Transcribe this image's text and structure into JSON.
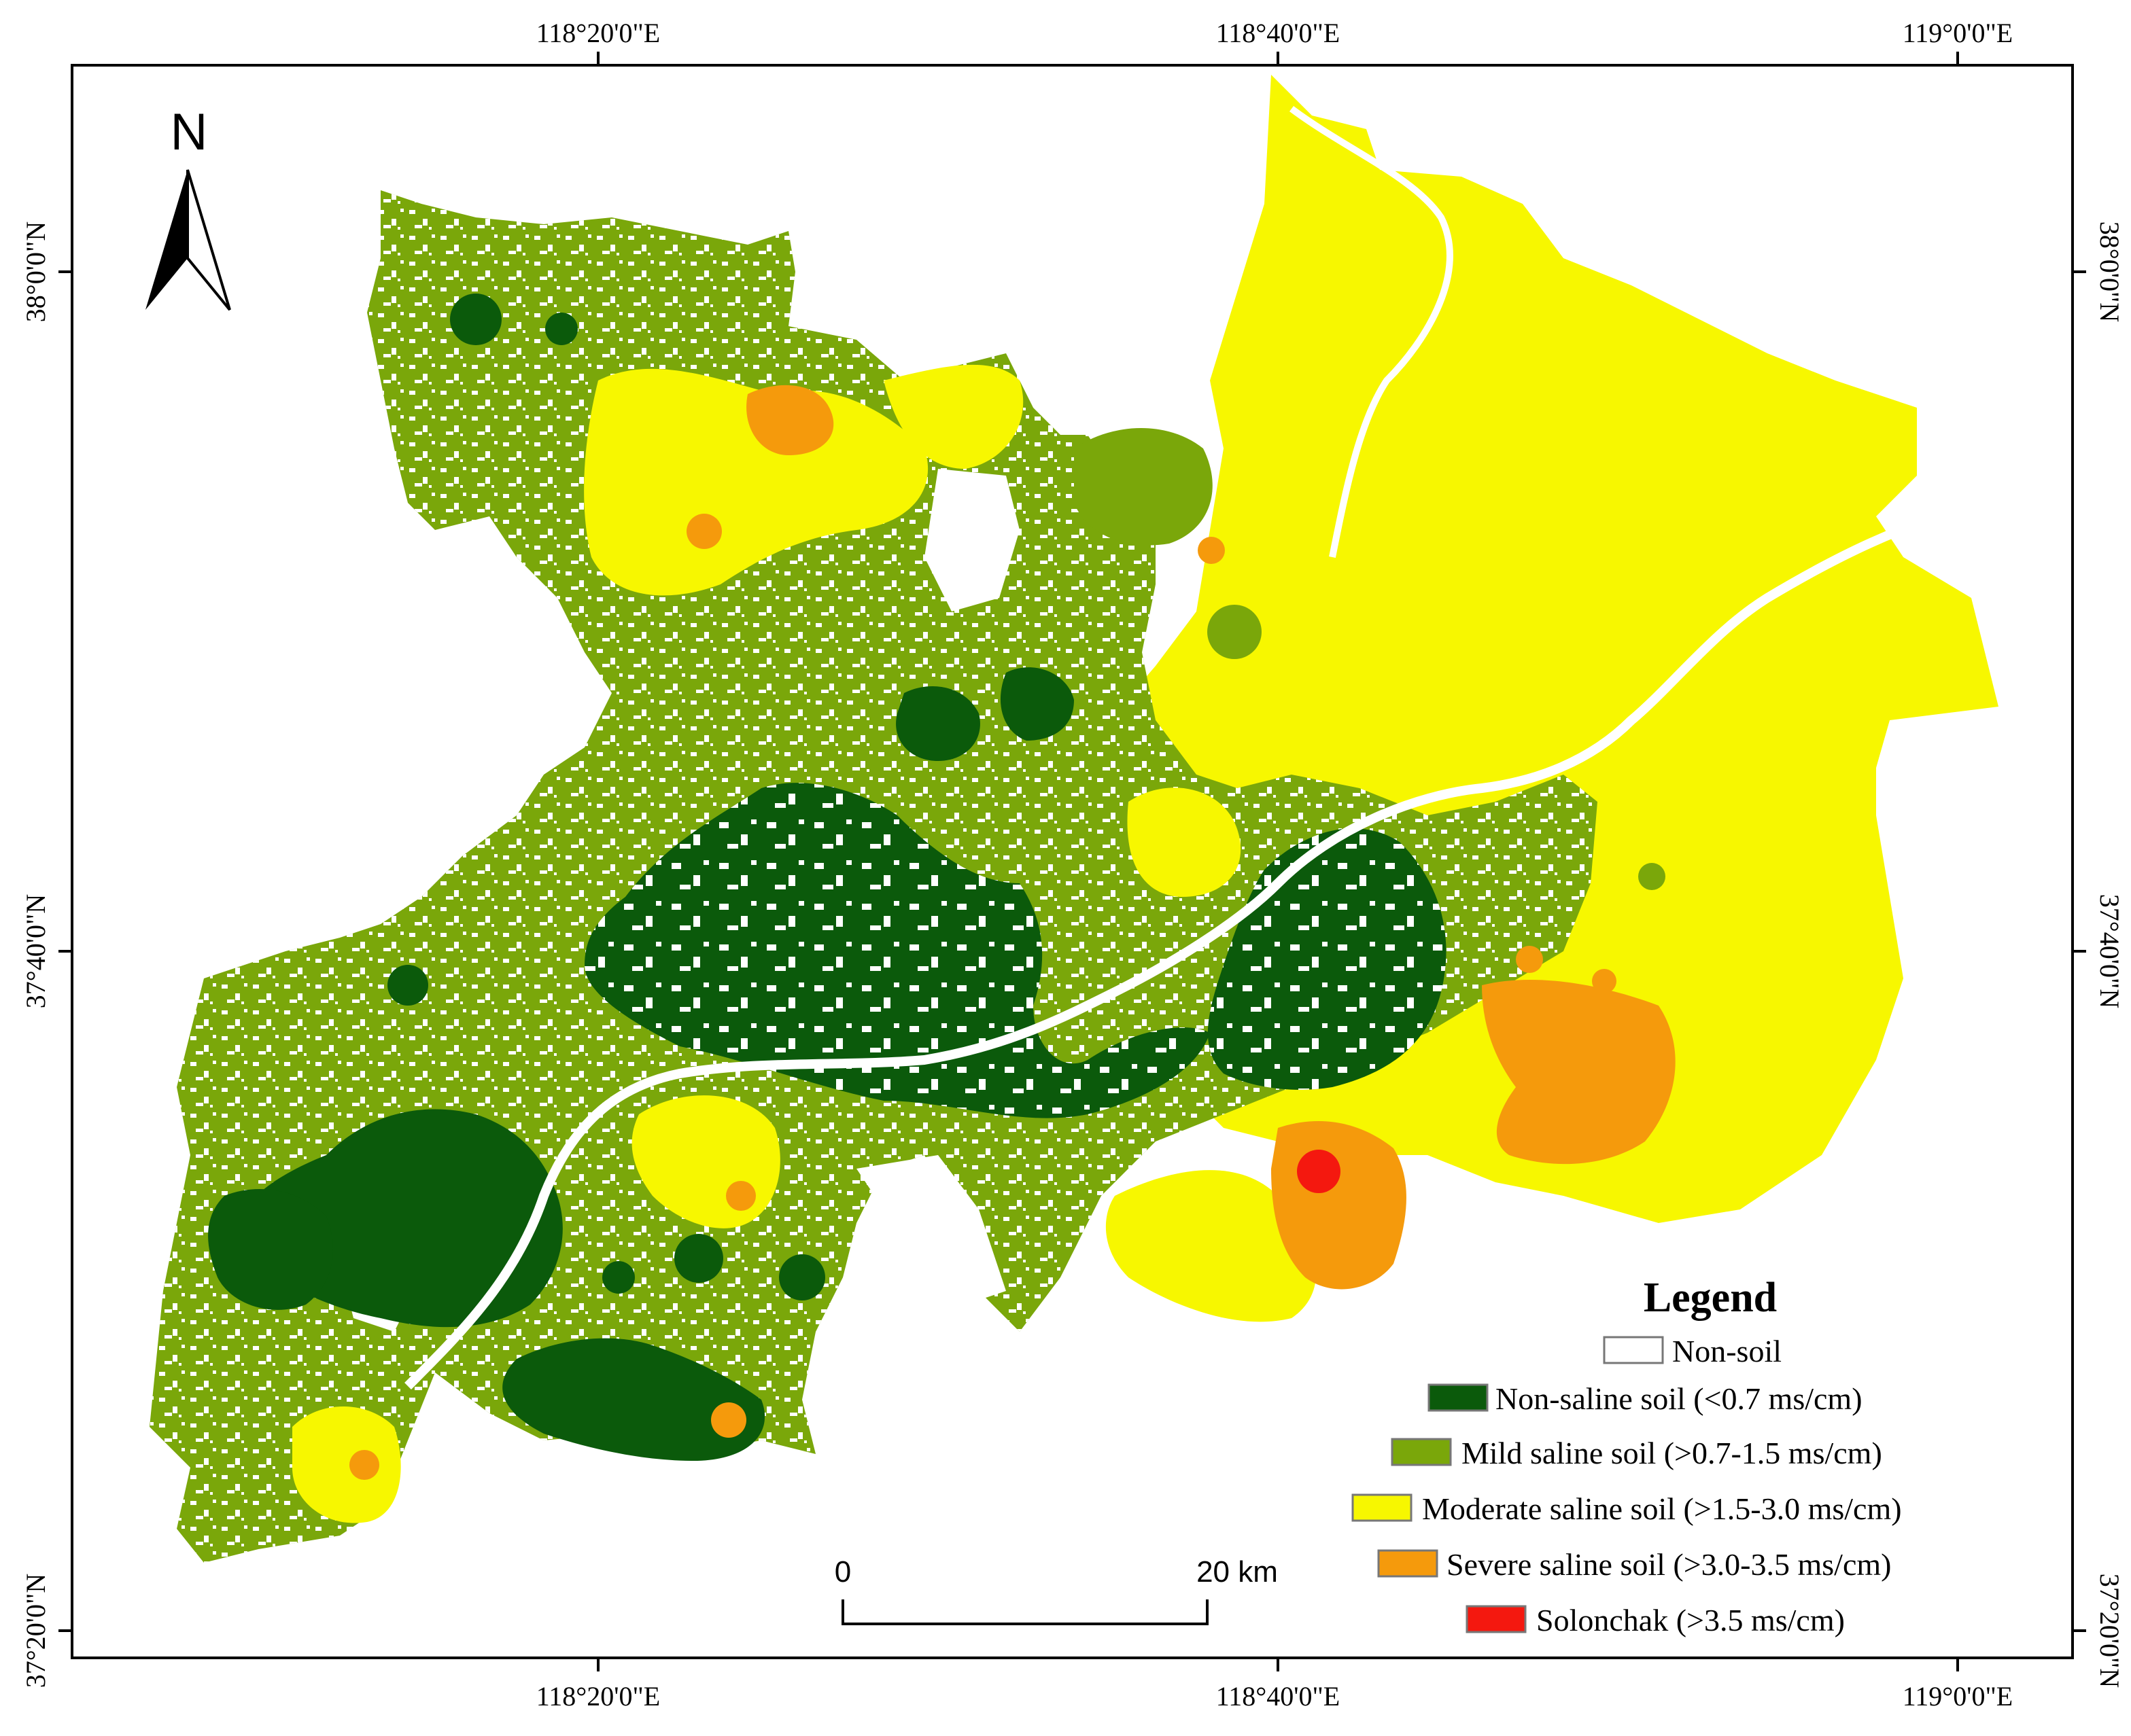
{
  "map": {
    "north_label": "N",
    "coordinates": {
      "lon_top": [
        "118°20'0\"E",
        "118°40'0\"E",
        "119°0'0\"E"
      ],
      "lon_bottom": [
        "118°20'0\"E",
        "118°40'0\"E",
        "119°0'0\"E"
      ],
      "lat_left": [
        "38°0'0\"N",
        "37°40'0\"N",
        "37°20'0\"N"
      ],
      "lat_right": [
        "38°0'0\"N",
        "37°40'0\"N",
        "37°20'0\"N"
      ]
    },
    "scale_bar": {
      "start_label": "0",
      "end_label": "20 km"
    },
    "legend": {
      "title": "Legend",
      "items": [
        {
          "label": "Non-soil",
          "color": "#ffffff"
        },
        {
          "label": "Non-saline soil (<0.7 ms/cm)",
          "color": "#0b5a0b"
        },
        {
          "label": "Mild saline soil (>0.7-1.5 ms/cm)",
          "color": "#7aa70a"
        },
        {
          "label": "Moderate saline soil (>1.5-3.0 ms/cm)",
          "color": "#f7f700"
        },
        {
          "label": "Severe saline soil (>3.0-3.5 ms/cm)",
          "color": "#f59a0c"
        },
        {
          "label": "Solonchak (>3.5 ms/cm)",
          "color": "#f4180f"
        }
      ]
    },
    "colors": {
      "non_saline": "#0b5a0b",
      "mild": "#7aa70a",
      "moderate": "#f7f700",
      "severe": "#f59a0c",
      "solonchak": "#f4180f"
    }
  }
}
